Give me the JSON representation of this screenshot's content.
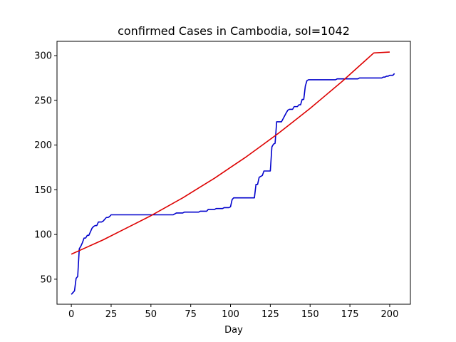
{
  "chart_data": {
    "type": "line",
    "title": "confirmed Cases in Cambodia, sol=1042",
    "xlabel": "Day",
    "ylabel": "",
    "xlim": [
      -9,
      213
    ],
    "ylim": [
      22,
      316
    ],
    "xticks": [
      0,
      25,
      50,
      75,
      100,
      125,
      150,
      175,
      200
    ],
    "yticks": [
      50,
      100,
      150,
      200,
      250,
      300
    ],
    "grid": false,
    "legend": "none",
    "series": [
      {
        "color": "#0000cc",
        "x": [
          0,
          1,
          2,
          3,
          4,
          5,
          6,
          7,
          8,
          9,
          10,
          11,
          12,
          13,
          14,
          15,
          16,
          17,
          18,
          19,
          20,
          21,
          22,
          23,
          24,
          25,
          26,
          27,
          28,
          30,
          35,
          40,
          45,
          50,
          55,
          60,
          62,
          64,
          65,
          66,
          70,
          71,
          75,
          80,
          81,
          85,
          86,
          90,
          91,
          95,
          96,
          99,
          100,
          101,
          102,
          103,
          104,
          110,
          115,
          116,
          117,
          118,
          119,
          120,
          121,
          122,
          125,
          126,
          127,
          128,
          129,
          130,
          131,
          132,
          135,
          136,
          137,
          138,
          139,
          140,
          141,
          142,
          143,
          144,
          145,
          146,
          147,
          148,
          149,
          150,
          155,
          160,
          165,
          166,
          167,
          170,
          175,
          180,
          181,
          182,
          185,
          190,
          195,
          196,
          197,
          198,
          199,
          200,
          201,
          202,
          203
        ],
        "y": [
          33,
          35,
          37,
          51,
          53,
          84,
          87,
          91,
          96,
          96,
          99,
          99,
          103,
          107,
          109,
          110,
          110,
          114,
          114,
          114,
          115,
          117,
          119,
          119,
          120,
          122,
          122,
          122,
          122,
          122,
          122,
          122,
          122,
          122,
          122,
          122,
          122,
          122,
          123,
          124,
          124,
          125,
          125,
          125,
          126,
          126,
          128,
          128,
          129,
          129,
          130,
          130,
          131,
          139,
          141,
          141,
          141,
          141,
          141,
          156,
          156,
          164,
          165,
          166,
          171,
          171,
          171,
          198,
          201,
          202,
          226,
          226,
          226,
          226,
          236,
          239,
          240,
          240,
          240,
          243,
          243,
          243,
          245,
          245,
          251,
          251,
          266,
          272,
          273,
          273,
          273,
          273,
          273,
          273,
          274,
          274,
          274,
          274,
          275,
          275,
          275,
          275,
          275,
          276,
          276,
          277,
          277,
          278,
          278,
          278,
          280
        ]
      },
      {
        "color": "#dd0000",
        "x": [
          0,
          10,
          20,
          30,
          40,
          50,
          60,
          70,
          80,
          90,
          100,
          110,
          120,
          130,
          140,
          150,
          160,
          170,
          180,
          190,
          200
        ],
        "y": [
          78,
          86,
          94,
          103,
          112,
          121,
          131,
          141,
          152,
          163,
          175,
          187,
          200,
          213,
          227,
          241,
          256,
          271,
          287,
          303,
          304
        ]
      }
    ]
  }
}
